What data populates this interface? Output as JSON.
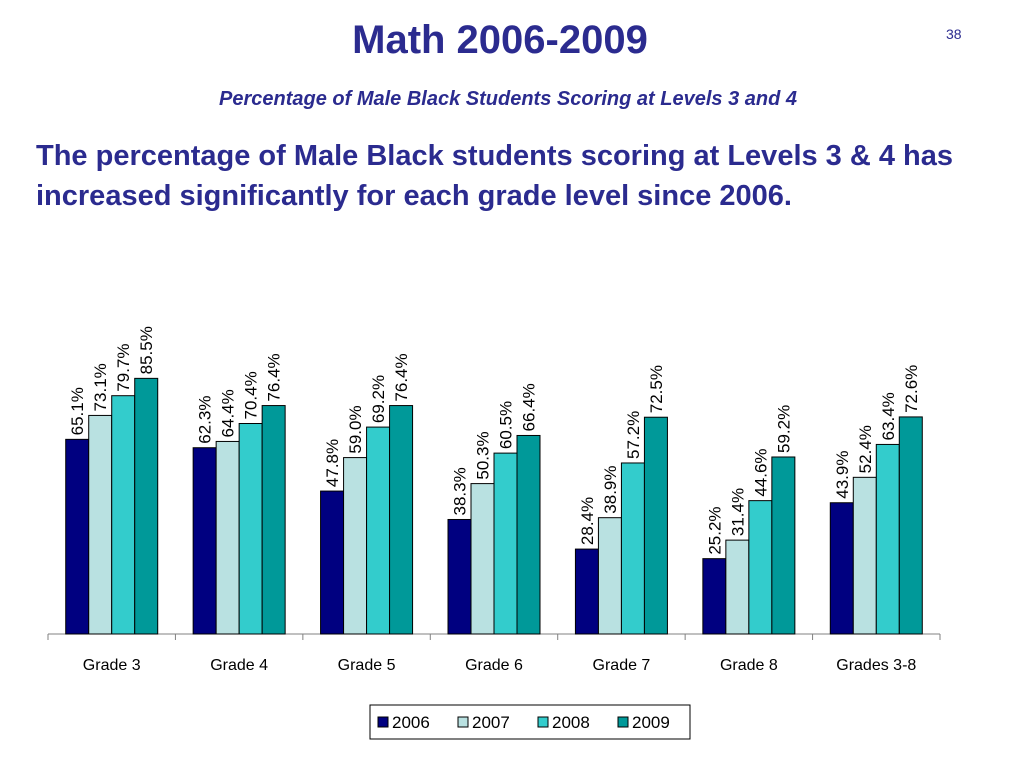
{
  "slide": {
    "title": "Math 2006-2009",
    "number": "38",
    "subtitle": "Percentage of Male Black Students Scoring at Levels 3 and 4",
    "statement": "The percentage of Male Black students scoring at Levels 3 & 4 has increased significantly  for each grade level since 2006."
  },
  "colors": {
    "title": "#2b2b8f",
    "s2006": "#000080",
    "s2007": "#b9e1e1",
    "s2008": "#33cccc",
    "s2009": "#009999"
  },
  "chart_data": {
    "type": "bar",
    "title": "",
    "xlabel": "",
    "ylabel": "",
    "ylim": [
      0,
      100
    ],
    "grid": false,
    "legend_position": "bottom",
    "categories": [
      "Grade 3",
      "Grade 4",
      "Grade 5",
      "Grade 6",
      "Grade 7",
      "Grade 8",
      "Grades 3-8"
    ],
    "series": [
      {
        "name": "2006",
        "color": "#000080",
        "values": [
          65.1,
          62.3,
          47.8,
          38.3,
          28.4,
          25.2,
          43.9
        ],
        "labels": [
          "65.1%",
          "62.3%",
          "47.8%",
          "38.3%",
          "28.4%",
          "25.2%",
          "43.9%"
        ]
      },
      {
        "name": "2007",
        "color": "#b9e1e1",
        "values": [
          73.1,
          64.4,
          59.0,
          50.3,
          38.9,
          31.4,
          52.4
        ],
        "labels": [
          "73.1%",
          "64.4%",
          "59.0%",
          "50.3%",
          "38.9%",
          "31.4%",
          "52.4%"
        ]
      },
      {
        "name": "2008",
        "color": "#33cccc",
        "values": [
          79.7,
          70.4,
          69.2,
          60.5,
          57.2,
          44.6,
          63.4
        ],
        "labels": [
          "79.7%",
          "70.4%",
          "69.2%",
          "60.5%",
          "57.2%",
          "44.6%",
          "63.4%"
        ]
      },
      {
        "name": "2009",
        "color": "#009999",
        "values": [
          85.5,
          76.4,
          76.4,
          66.4,
          72.5,
          59.2,
          72.6
        ],
        "labels": [
          "85.5%",
          "76.4%",
          "76.4%",
          "66.4%",
          "72.5%",
          "59.2%",
          "72.6%"
        ]
      }
    ]
  }
}
